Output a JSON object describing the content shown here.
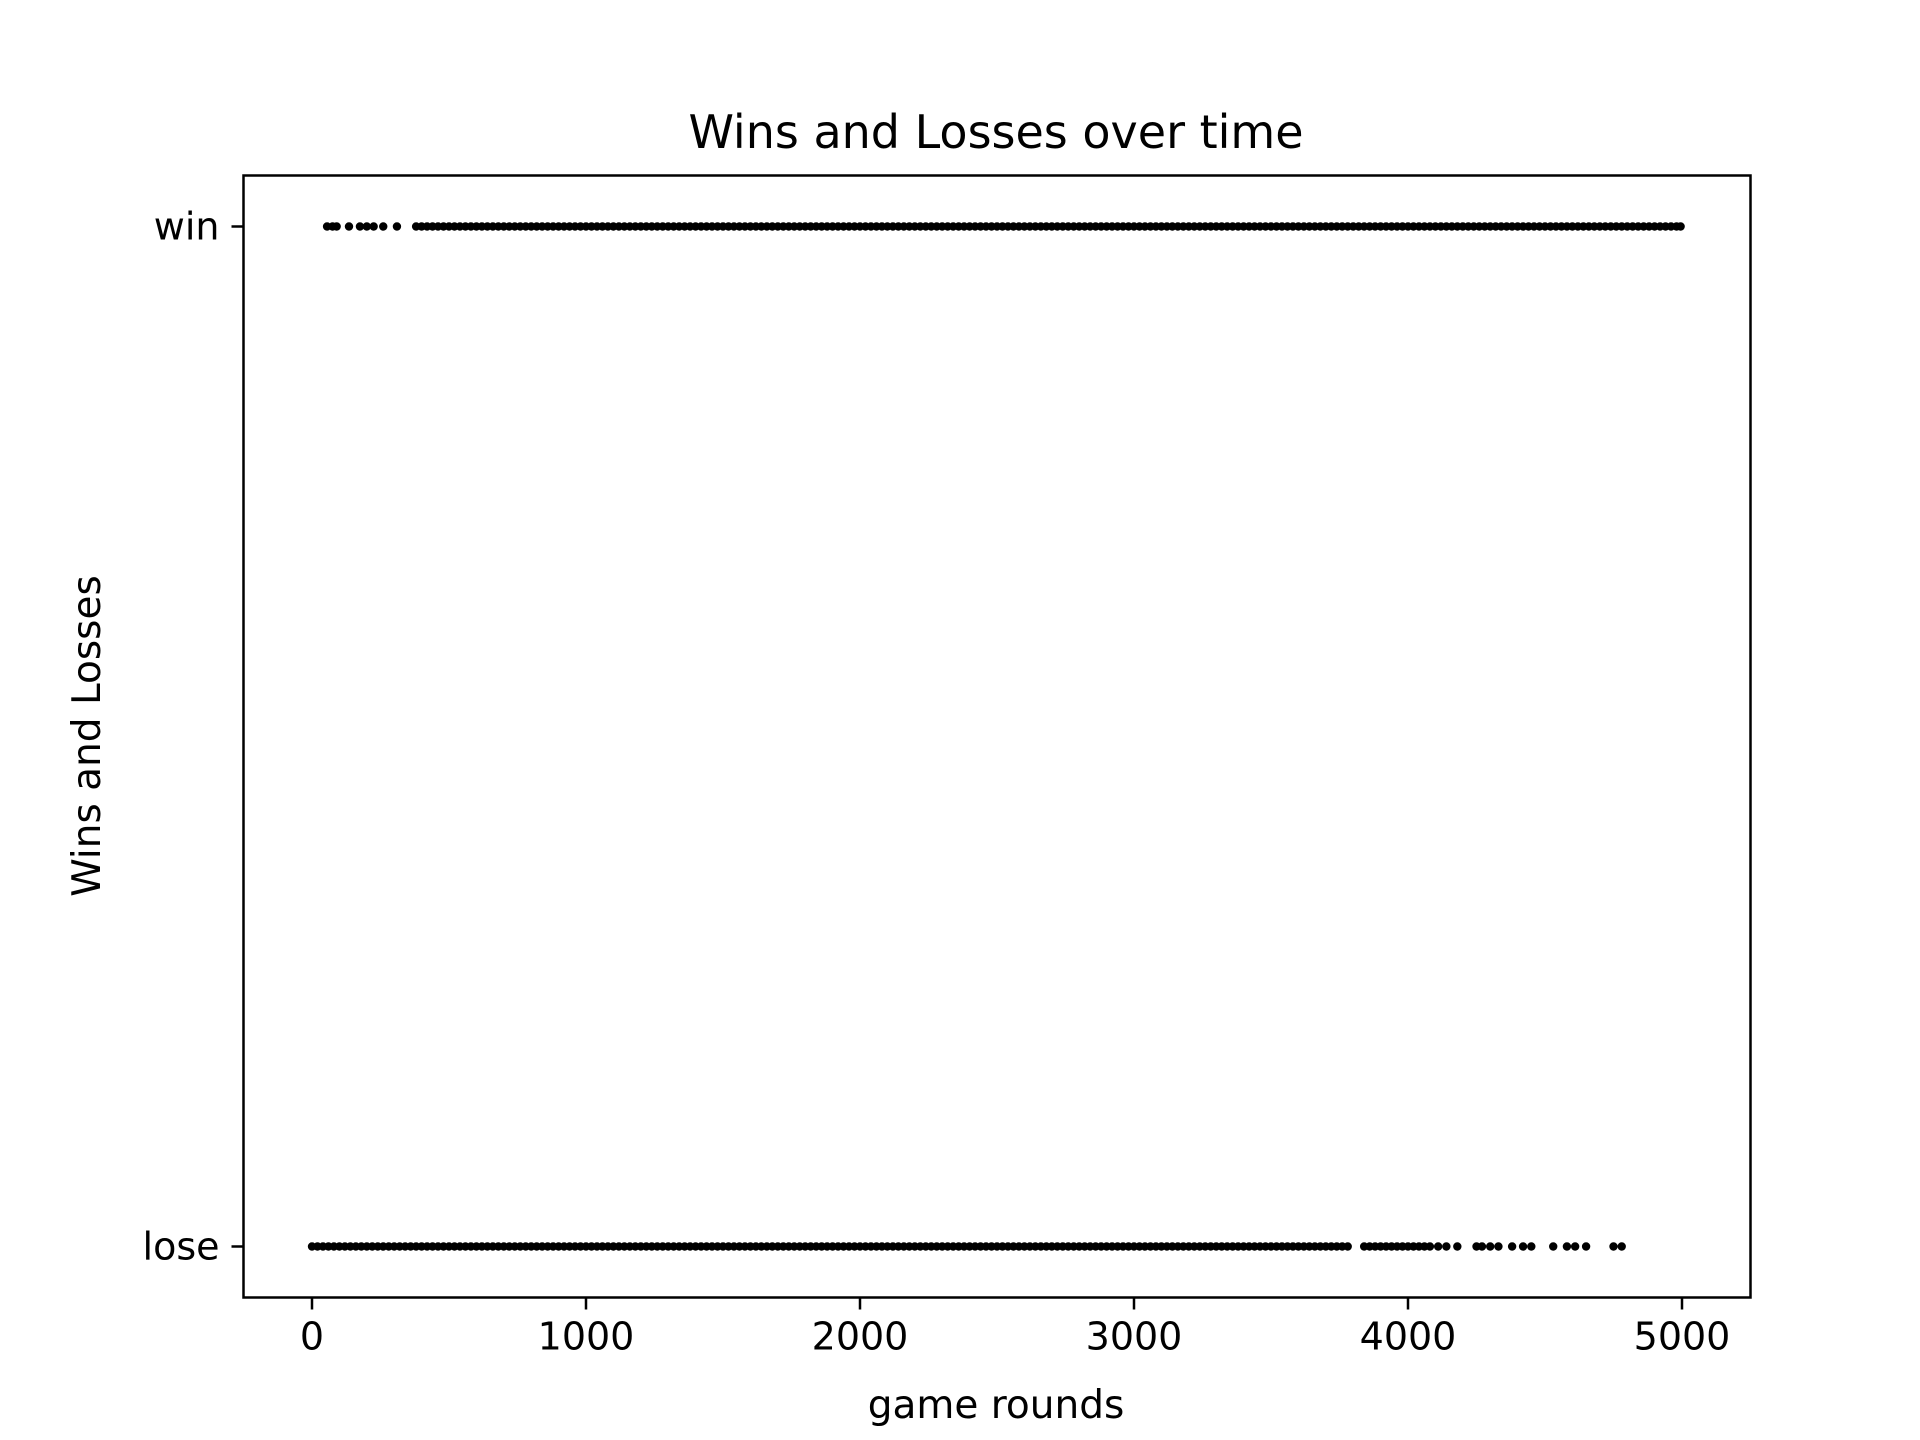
{
  "chart_data": {
    "type": "scatter",
    "title": "Wins and Losses over time",
    "xlabel": "game rounds",
    "ylabel": "Wins and Losses",
    "xlim": [
      -250,
      5250
    ],
    "ylim": [
      -0.05,
      1.05
    ],
    "x_ticks": [
      0,
      1000,
      2000,
      3000,
      4000,
      5000
    ],
    "x_tick_labels": [
      "0",
      "1000",
      "2000",
      "3000",
      "4000",
      "5000"
    ],
    "y_ticks": [
      0,
      1
    ],
    "y_tick_labels": [
      "lose",
      "win"
    ],
    "grid": false,
    "marker_color": "#000000",
    "series": [
      {
        "outcome": "win",
        "y": 1,
        "x": [
          55,
          75,
          90,
          135,
          175,
          200,
          225,
          260,
          310,
          380,
          400,
          420,
          440,
          460,
          480,
          500,
          520,
          540,
          560,
          580,
          600,
          620,
          640,
          660,
          680,
          700,
          720,
          740,
          760,
          780,
          800,
          820,
          840,
          860,
          880,
          900,
          920,
          940,
          960,
          980,
          1000,
          1020,
          1040,
          1060,
          1080,
          1100,
          1120,
          1140,
          1160,
          1180,
          1200,
          1220,
          1240,
          1260,
          1280,
          1300,
          1320,
          1340,
          1360,
          1380,
          1400,
          1420,
          1440,
          1460,
          1480,
          1500,
          1520,
          1540,
          1560,
          1580,
          1600,
          1620,
          1640,
          1660,
          1680,
          1700,
          1720,
          1740,
          1760,
          1780,
          1800,
          1820,
          1840,
          1860,
          1880,
          1900,
          1920,
          1940,
          1960,
          1980,
          2000,
          2020,
          2040,
          2060,
          2080,
          2100,
          2120,
          2140,
          2160,
          2180,
          2200,
          2220,
          2240,
          2260,
          2280,
          2300,
          2320,
          2340,
          2360,
          2380,
          2400,
          2420,
          2440,
          2460,
          2480,
          2500,
          2520,
          2540,
          2560,
          2580,
          2600,
          2620,
          2640,
          2660,
          2680,
          2700,
          2720,
          2740,
          2760,
          2780,
          2800,
          2820,
          2840,
          2860,
          2880,
          2900,
          2920,
          2940,
          2960,
          2980,
          3000,
          3020,
          3040,
          3060,
          3080,
          3100,
          3120,
          3140,
          3160,
          3180,
          3200,
          3220,
          3240,
          3260,
          3280,
          3300,
          3320,
          3340,
          3360,
          3380,
          3400,
          3420,
          3440,
          3460,
          3480,
          3500,
          3520,
          3540,
          3560,
          3580,
          3600,
          3620,
          3640,
          3660,
          3680,
          3700,
          3720,
          3740,
          3760,
          3780,
          3800,
          3820,
          3840,
          3860,
          3880,
          3900,
          3920,
          3940,
          3960,
          3980,
          4000,
          4020,
          4040,
          4060,
          4080,
          4100,
          4120,
          4140,
          4160,
          4180,
          4200,
          4220,
          4240,
          4260,
          4280,
          4300,
          4320,
          4340,
          4360,
          4380,
          4400,
          4420,
          4440,
          4460,
          4480,
          4500,
          4520,
          4540,
          4560,
          4580,
          4600,
          4620,
          4640,
          4660,
          4680,
          4700,
          4720,
          4740,
          4760,
          4780,
          4800,
          4820,
          4840,
          4860,
          4880,
          4900,
          4920,
          4940,
          4960,
          4980,
          4995
        ]
      },
      {
        "outcome": "lose",
        "y": 0,
        "x": [
          0,
          20,
          40,
          60,
          80,
          100,
          120,
          140,
          160,
          180,
          200,
          220,
          240,
          260,
          280,
          300,
          320,
          340,
          360,
          380,
          400,
          420,
          440,
          460,
          480,
          500,
          520,
          540,
          560,
          580,
          600,
          620,
          640,
          660,
          680,
          700,
          720,
          740,
          760,
          780,
          800,
          820,
          840,
          860,
          880,
          900,
          920,
          940,
          960,
          980,
          1000,
          1020,
          1040,
          1060,
          1080,
          1100,
          1120,
          1140,
          1160,
          1180,
          1200,
          1220,
          1240,
          1260,
          1280,
          1300,
          1320,
          1340,
          1360,
          1380,
          1400,
          1420,
          1440,
          1460,
          1480,
          1500,
          1520,
          1540,
          1560,
          1580,
          1600,
          1620,
          1640,
          1660,
          1680,
          1700,
          1720,
          1740,
          1760,
          1780,
          1800,
          1820,
          1840,
          1860,
          1880,
          1900,
          1920,
          1940,
          1960,
          1980,
          2000,
          2020,
          2040,
          2060,
          2080,
          2100,
          2120,
          2140,
          2160,
          2180,
          2200,
          2220,
          2240,
          2260,
          2280,
          2300,
          2320,
          2340,
          2360,
          2380,
          2400,
          2420,
          2440,
          2460,
          2480,
          2500,
          2520,
          2540,
          2560,
          2580,
          2600,
          2620,
          2640,
          2660,
          2680,
          2700,
          2720,
          2740,
          2760,
          2780,
          2800,
          2820,
          2840,
          2860,
          2880,
          2900,
          2920,
          2940,
          2960,
          2980,
          3000,
          3020,
          3040,
          3060,
          3080,
          3100,
          3120,
          3140,
          3160,
          3180,
          3200,
          3220,
          3240,
          3260,
          3280,
          3300,
          3320,
          3340,
          3360,
          3380,
          3400,
          3420,
          3440,
          3460,
          3480,
          3500,
          3520,
          3540,
          3560,
          3580,
          3600,
          3620,
          3640,
          3660,
          3680,
          3700,
          3720,
          3740,
          3760,
          3780,
          3840,
          3860,
          3880,
          3900,
          3920,
          3940,
          3960,
          3980,
          4000,
          4020,
          4040,
          4060,
          4080,
          4110,
          4140,
          4180,
          4250,
          4270,
          4300,
          4330,
          4380,
          4420,
          4450,
          4530,
          4580,
          4610,
          4650,
          4750,
          4780
        ]
      }
    ]
  }
}
